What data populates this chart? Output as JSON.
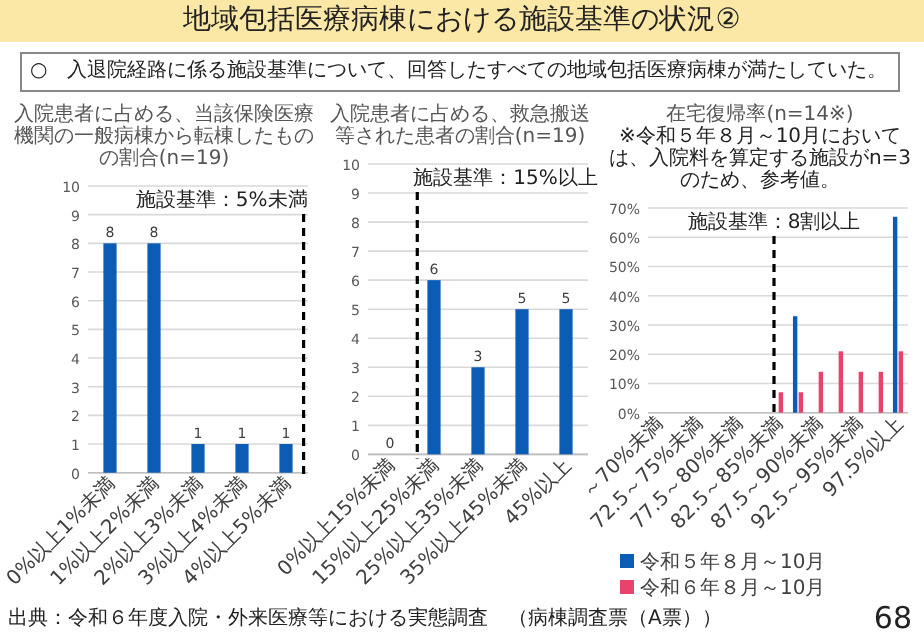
{
  "chart_data": [
    {
      "type": "other",
      "title": "地域包括医療病棟における施設基準の状況②",
      "subtitle": "○　入退院経路に係る施設基準について、回答したすべての地域包括医療病棟が満たしていた。",
      "annotations": [
        "出典：令和６年度入院・外来医療等における実態調査　（病棟調査票（A票））",
        "68"
      ]
    },
    {
      "type": "bar",
      "title": "入院患者に占める、当該保険医療機関の一般病棟から転棟したものの割合(n=19)",
      "categories": [
        "0%以上1%未満",
        "1%以上2%未満",
        "2%以上3%未満",
        "3%以上4%未満",
        "4%以上5%未満"
      ],
      "values": [
        8,
        8,
        1,
        1,
        1
      ],
      "color": "#0b5cb5",
      "ylim": [
        0,
        10
      ],
      "yticks": [
        0,
        1,
        2,
        3,
        4,
        5,
        6,
        7,
        8,
        9,
        10
      ],
      "grid": "y",
      "data_labels": true,
      "ref_lines": [
        {
          "axis": "x",
          "value": "4%以上5%未満",
          "label": "施設基準：5%未満",
          "color": "#000000",
          "line_style": "dashed"
        }
      ]
    },
    {
      "type": "bar",
      "title": "入院患者に占める、救急搬送等された患者の割合(n=19)",
      "categories": [
        "0%以上15%未満",
        "15%以上25%未満",
        "25%以上35%未満",
        "35%以上45%未満",
        "45%以上"
      ],
      "values": [
        0,
        6,
        3,
        5,
        5
      ],
      "color": "#0b5cb5",
      "ylim": [
        0,
        10
      ],
      "yticks": [
        0,
        1,
        2,
        3,
        4,
        5,
        6,
        7,
        8,
        9,
        10
      ],
      "grid": "y",
      "data_labels": true,
      "ref_lines": [
        {
          "axis": "x",
          "value": "15%以上25%未満",
          "label": "施設基準：15%以上",
          "color": "#000000",
          "line_style": "dashed"
        }
      ]
    },
    {
      "type": "bar",
      "title": "在宅復帰率(n=14※)",
      "subtitle": "※令和５年８月～10月においては、入院料を算定する施設がn=3のため、参考値。",
      "categories": [
        "～70%未満",
        null,
        "72.5～75%未満",
        null,
        "77.5～80%未満",
        null,
        "82.5～85%未満",
        null,
        "87.5～90%未満",
        null,
        "92.5～95%未満",
        null,
        "97.5%以上"
      ],
      "series": [
        {
          "name": "令和５年８月～10月",
          "color": "#0b5cb5",
          "values": [
            0,
            0,
            0,
            0,
            0,
            0,
            0,
            33,
            0,
            0,
            0,
            0,
            67
          ]
        },
        {
          "name": "令和６年８月～10月",
          "color": "#e8436d",
          "values": [
            0,
            0,
            0,
            0,
            0,
            0,
            7,
            7,
            14,
            21,
            14,
            14,
            21
          ]
        }
      ],
      "ylim": [
        0,
        70
      ],
      "yticks": [
        {
          "value": 0,
          "label": "0%"
        },
        {
          "value": 10,
          "label": "10%"
        },
        {
          "value": 20,
          "label": "20%"
        },
        {
          "value": 30,
          "label": "30%"
        },
        {
          "value": 40,
          "label": "40%"
        },
        {
          "value": 50,
          "label": "50%"
        },
        {
          "value": 60,
          "label": "60%"
        },
        {
          "value": 70,
          "label": "70%"
        }
      ],
      "grid": "y",
      "legend": "bottom",
      "ref_lines": [
        {
          "axis": "x",
          "value": "82.5～85%未満",
          "label": "施設基準：8割以上",
          "color": "#000000",
          "line_style": "dashed"
        }
      ]
    }
  ]
}
